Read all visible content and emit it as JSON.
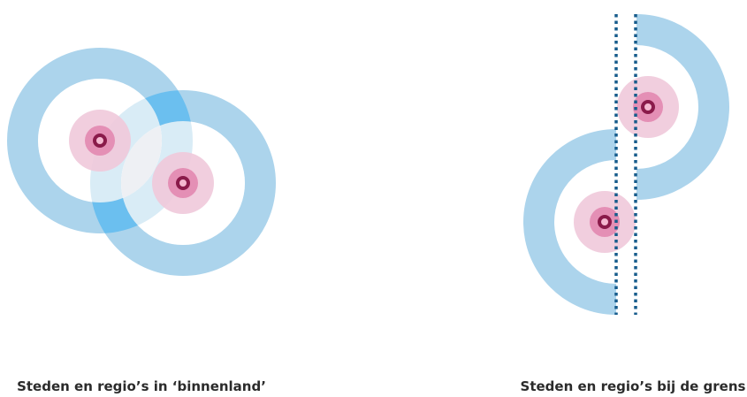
{
  "captions": {
    "left": "Steden en regio’s in ‘binnenland’",
    "right": "Steden en regio’s bij de grens"
  }
}
